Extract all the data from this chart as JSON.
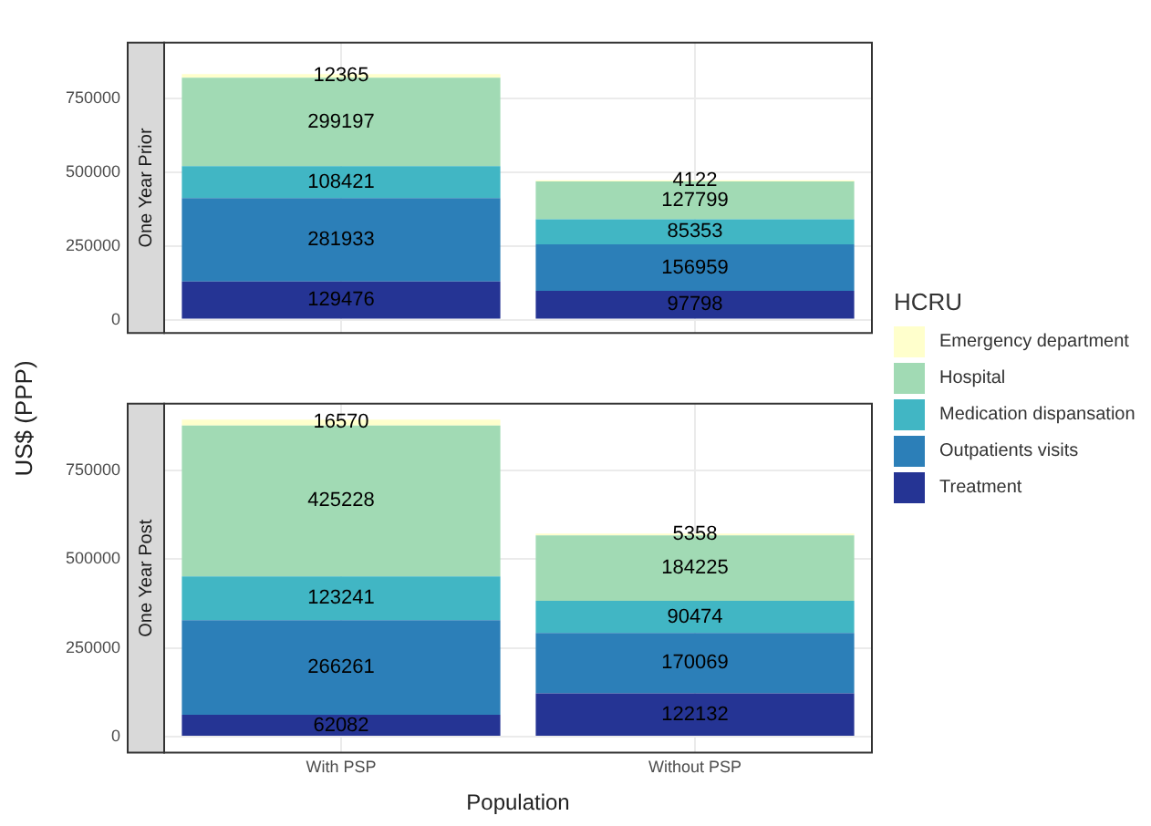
{
  "chart_data": [
    {
      "type": "bar",
      "title": "One Year Prior",
      "ylabel": "US$ (PPP)",
      "legend_title": "HCRU",
      "legend": "right",
      "categories": [
        null,
        null
      ],
      "stacked": true,
      "data_labels": true,
      "grid": true,
      "tick_labels": "y",
      "ylim": [
        -45000,
        938000
      ],
      "yticks": [
        0,
        250000,
        500000,
        750000
      ],
      "series": [
        {
          "name": "Treatment",
          "color": "#253494",
          "values": [
            129476,
            97798
          ]
        },
        {
          "name": "Outpatients visits",
          "color": "#2c7fb8",
          "values": [
            281933,
            156959
          ]
        },
        {
          "name": "Medication dispansation",
          "color": "#41b6c4",
          "values": [
            108421,
            85353
          ]
        },
        {
          "name": "Hospital",
          "color": "#a1dab4",
          "values": [
            299197,
            127799
          ]
        },
        {
          "name": "Emergency department",
          "color": "#ffffcc",
          "values": [
            12365,
            4122
          ]
        }
      ]
    },
    {
      "type": "bar",
      "title": "One Year Post",
      "xlabel": "Population",
      "categories": [
        "With PSP",
        "Without PSP"
      ],
      "stacked": true,
      "data_labels": true,
      "grid": true,
      "ylim": [
        -45000,
        938000
      ],
      "yticks": [
        0,
        250000,
        500000,
        750000
      ],
      "series": [
        {
          "color": "#253494",
          "values": [
            62082,
            122132
          ]
        },
        {
          "color": "#2c7fb8",
          "values": [
            266261,
            170069
          ]
        },
        {
          "color": "#41b6c4",
          "values": [
            123241,
            90474
          ]
        },
        {
          "color": "#a1dab4",
          "values": [
            425228,
            184225
          ]
        },
        {
          "color": "#ffffcc",
          "values": [
            16570,
            5358
          ]
        }
      ]
    }
  ]
}
